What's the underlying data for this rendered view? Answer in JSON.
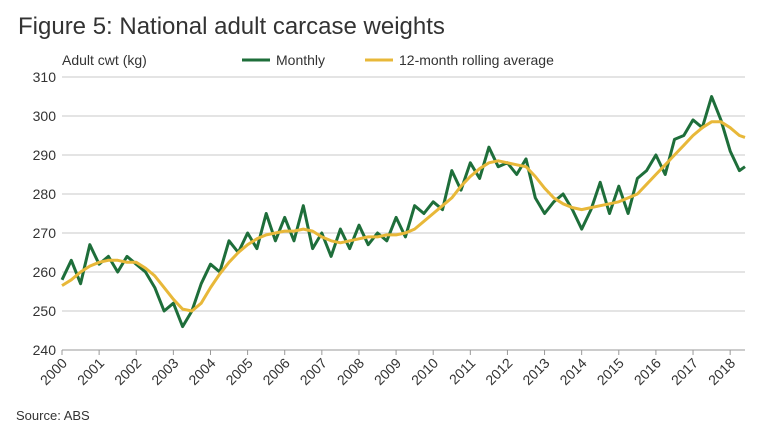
{
  "chart_data": {
    "type": "line",
    "title": "Figure 5: National adult carcase weights",
    "y_label": "Adult cwt (kg)",
    "source": "Source: ABS",
    "x": [
      2000,
      2000.25,
      2000.5,
      2000.75,
      2001,
      2001.25,
      2001.5,
      2001.75,
      2002,
      2002.25,
      2002.5,
      2002.75,
      2003,
      2003.25,
      2003.5,
      2003.75,
      2004,
      2004.25,
      2004.5,
      2004.75,
      2005,
      2005.25,
      2005.5,
      2005.75,
      2006,
      2006.25,
      2006.5,
      2006.75,
      2007,
      2007.25,
      2007.5,
      2007.75,
      2008,
      2008.25,
      2008.5,
      2008.75,
      2009,
      2009.25,
      2009.5,
      2009.75,
      2010,
      2010.25,
      2010.5,
      2010.75,
      2011,
      2011.25,
      2011.5,
      2011.75,
      2012,
      2012.25,
      2012.5,
      2012.75,
      2013,
      2013.25,
      2013.5,
      2013.75,
      2014,
      2014.25,
      2014.5,
      2014.75,
      2015,
      2015.25,
      2015.5,
      2015.75,
      2016,
      2016.25,
      2016.5,
      2016.75,
      2017,
      2017.25,
      2017.5,
      2017.75,
      2018,
      2018.25,
      2018.4
    ],
    "series": [
      {
        "name": "Monthly",
        "color": "#1e6e3a",
        "values": [
          258,
          263,
          257,
          267,
          262,
          264,
          260,
          264,
          262,
          260,
          256,
          250,
          252,
          246,
          250,
          257,
          262,
          260,
          268,
          265,
          270,
          266,
          275,
          268,
          274,
          268,
          277,
          266,
          270,
          264,
          271,
          266,
          272,
          267,
          270,
          268,
          274,
          269,
          277,
          275,
          278,
          276,
          286,
          281,
          288,
          284,
          292,
          287,
          288,
          285,
          289,
          279,
          275,
          278,
          280,
          276,
          271,
          276,
          283,
          275,
          282,
          275,
          284,
          286,
          290,
          285,
          294,
          295,
          299,
          297,
          305,
          299,
          291,
          286,
          287
        ]
      },
      {
        "name": "12-month rolling average",
        "color": "#e8b839",
        "values": [
          256.5,
          258,
          260,
          261.5,
          262.5,
          263,
          263,
          262.5,
          262.5,
          261,
          259,
          256,
          253,
          250.5,
          250,
          252,
          256,
          259.5,
          262.5,
          265,
          267,
          268.5,
          269.5,
          270,
          270.5,
          270.5,
          271,
          270.5,
          269,
          268,
          267.5,
          268,
          268.5,
          269,
          269,
          269.5,
          269.5,
          270,
          271,
          273,
          275,
          277,
          279,
          282,
          284.5,
          286.5,
          288,
          288.5,
          288,
          287.5,
          287,
          284.5,
          281.5,
          279,
          277.5,
          276.5,
          276,
          276.5,
          277,
          277.5,
          278,
          279,
          280,
          282.5,
          285,
          287.5,
          290,
          292.5,
          295,
          297,
          298.5,
          298.5,
          297,
          295,
          294.5
        ]
      }
    ],
    "xlim": [
      2000,
      2018.4
    ],
    "xticks": [
      2000,
      2001,
      2002,
      2003,
      2004,
      2005,
      2006,
      2007,
      2008,
      2009,
      2010,
      2011,
      2012,
      2013,
      2014,
      2015,
      2016,
      2017,
      2018
    ],
    "ylim": [
      240,
      310
    ],
    "yticks": [
      240,
      250,
      260,
      270,
      280,
      290,
      300,
      310
    ],
    "grid": true
  }
}
